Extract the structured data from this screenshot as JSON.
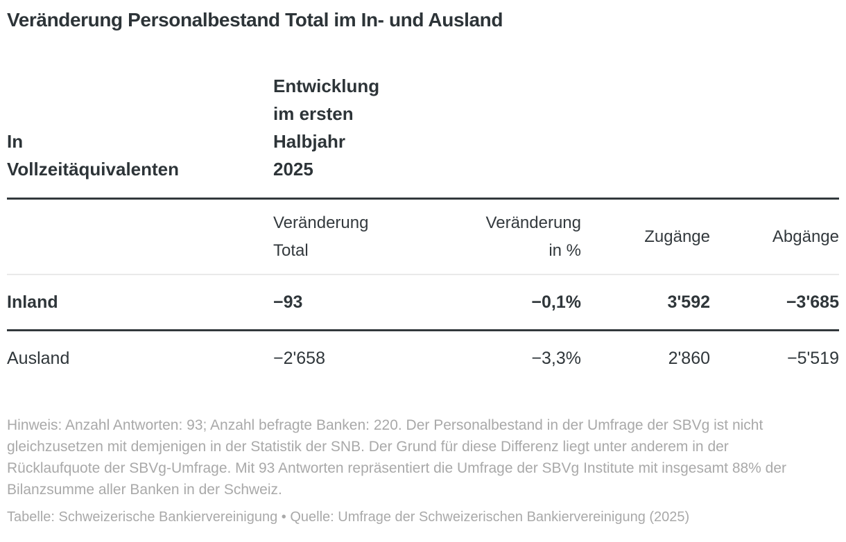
{
  "title": "Veränderung Personalbestand Total im In- und Ausland",
  "display": {
    "corner_header": "In\nVollzeitäquivalenten",
    "period_header": "Entwicklung\nim ersten\nHalbjahr\n2025",
    "columns": [
      "Veränderung\nTotal",
      "Veränderung\nin %",
      "Zugänge",
      "Abgänge"
    ],
    "rows": [
      {
        "label": "Inland",
        "total": "−93",
        "pct": "−0,1%",
        "zugaenge": "3'592",
        "abgaenge": "−3'685"
      },
      {
        "label": "Ausland",
        "total": "−2'658",
        "pct": "−3,3%",
        "zugaenge": "2'860",
        "abgaenge": "−5'519"
      }
    ]
  },
  "chart_data": {
    "type": "table",
    "title": "Veränderung Personalbestand Total im In- und Ausland",
    "unit_label": "In Vollzeitäquivalenten",
    "period_label": "Entwicklung im ersten Halbjahr 2025",
    "columns": [
      "Veränderung Total",
      "Veränderung in %",
      "Zugänge",
      "Abgänge"
    ],
    "rows": [
      {
        "label": "Inland",
        "values": [
          -93,
          -0.1,
          3592,
          -3685
        ],
        "emphasized": true
      },
      {
        "label": "Ausland",
        "values": [
          -2658,
          -3.3,
          2860,
          -5519
        ],
        "emphasized": false
      }
    ]
  },
  "note": "Hinweis: Anzahl Antworten: 93; Anzahl befragte Banken: 220. Der Personalbestand in der Umfrage der SBVg ist nicht gleichzusetzen mit demjenigen in der Statistik der SNB. Der Grund für diese Differenz liegt unter anderem in der Rücklaufquote der SBVg-Umfrage. Mit 93 Antworten repräsentiert die Umfrage der SBVg Institute mit insgesamt 88% der Bilanzsumme aller Banken in der Schweiz.",
  "credit": "Tabelle: Schweizerische Bankiervereinigung • Quelle: Umfrage der Schweizerischen Bankiervereinigung (2025)",
  "colors": {
    "text_dark": "#2f363a",
    "text_muted": "#a9a9a9",
    "rule_dark": "#32383c",
    "rule_light": "#e9e9e9"
  }
}
